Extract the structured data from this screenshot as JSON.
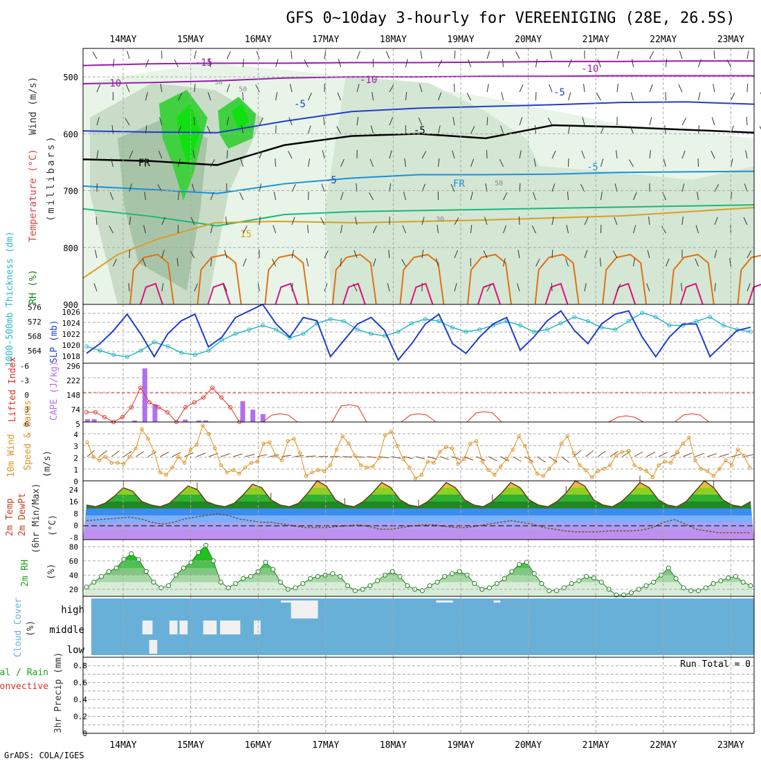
{
  "title": "GFS 0~10day 3-hourly for VEREENIGING (28E, 26.5S)",
  "footer": "GrADS: COLA/IGES",
  "days": [
    "14MAY",
    "15MAY",
    "16MAY",
    "17MAY",
    "18MAY",
    "19MAY",
    "20MAY",
    "21MAY",
    "22MAY",
    "23MAY"
  ],
  "colors": {
    "grid": "#a8a8a8",
    "purple": "#9a1ab0",
    "blue": "#1e3cd0",
    "cyan": "#1890d8",
    "green": "#18b878",
    "gold": "#d8a020",
    "orange": "#e07010",
    "magenta": "#e0107a",
    "slp": "#1e3cd0",
    "thick": "#28b8c0",
    "li": "#e03020",
    "cape": "#b070f0",
    "wind": "#e09020",
    "rh": "#20a020",
    "cloud": "#68b0d8"
  },
  "chart_data": [
    {
      "type": "contour",
      "name": "upper-air",
      "ylabel_parts": [
        "RH (%)",
        "Temperature (°C)",
        "Wind (m/s)",
        "(millibars)"
      ],
      "yticks": [
        500,
        600,
        700,
        800,
        900
      ],
      "ylim": [
        900,
        450
      ],
      "contour_labels": [
        "-15",
        "-10",
        "-10",
        "-10",
        "-5",
        "-5",
        "-5",
        "FR",
        "FR",
        "-5",
        "-5",
        "15",
        "30",
        "30",
        "50",
        "50"
      ],
      "isotherms": [
        {
          "label": "-15",
          "values": [
            480,
            477,
            476,
            476,
            475,
            475,
            474,
            473,
            473,
            472,
            472
          ]
        },
        {
          "label": "-10",
          "values": [
            512,
            510,
            507,
            502,
            500,
            500,
            499,
            499,
            498,
            498,
            498
          ]
        },
        {
          "label": "-5",
          "values": [
            595,
            597,
            598,
            578,
            561,
            555,
            552,
            549,
            545,
            544,
            548
          ]
        },
        {
          "label": "FR",
          "values": [
            645,
            648,
            655,
            620,
            604,
            600,
            608,
            585,
            588,
            593,
            598
          ]
        },
        {
          "label": "5",
          "values": [
            692,
            698,
            705,
            688,
            678,
            672,
            672,
            671,
            668,
            667,
            666
          ]
        },
        {
          "label": "10",
          "values": [
            732,
            745,
            762,
            742,
            737,
            735,
            733,
            731,
            729,
            727,
            725
          ]
        }
      ]
    },
    {
      "type": "line",
      "name": "slp-thickness",
      "ylabel_left": "1000-500mb Thickness (dm)",
      "ylabel_right": "SLP (mb)",
      "left_ticks": [
        "576",
        "572",
        "568",
        "564"
      ],
      "right_ticks": [
        "1026",
        "1024",
        "1022",
        "1020",
        "1018"
      ],
      "series": [
        {
          "name": "SLP",
          "values": [
            1019.5,
            1021,
            1023,
            1025.5,
            1022.5,
            1019,
            1022.5,
            1024.5,
            1025.5,
            1020.5,
            1022,
            1025,
            1026,
            1027,
            1024,
            1022,
            1025,
            1024.5,
            1019,
            1021.5,
            1024,
            1025,
            1023,
            1018.5,
            1021,
            1024,
            1025.5,
            1021,
            1019.5,
            1022,
            1024,
            1025,
            1020,
            1022,
            1024.5,
            1026,
            1023,
            1021,
            1024,
            1025.5,
            1026,
            1022,
            1019,
            1022,
            1024,
            1024,
            1019,
            1021,
            1023,
            1023.5
          ]
        },
        {
          "name": "Thickness",
          "values": [
            566,
            565,
            564,
            563.5,
            565,
            567,
            566,
            564.5,
            564,
            565,
            567.5,
            569,
            570,
            571,
            570,
            568,
            569,
            571.5,
            572.5,
            572,
            570,
            569,
            568.5,
            569.5,
            571.5,
            572.5,
            572,
            570.5,
            569.5,
            570,
            571,
            572,
            571,
            569.5,
            570,
            571.5,
            573,
            572,
            570.5,
            570,
            572,
            574,
            573,
            571,
            571,
            572,
            573,
            571,
            570,
            569.5
          ]
        }
      ]
    },
    {
      "type": "bar+line",
      "name": "instability",
      "ylabel_left": "Lifted Index",
      "ylabel_right": "CAPE (J/kg)",
      "left_ticks": [
        "-6",
        "-3",
        "0",
        "3",
        "6"
      ],
      "right_ticks": [
        "296",
        "222",
        "148",
        "74",
        "5"
      ],
      "cape_bars": [
        {
          "t": 0.05,
          "v": 14
        },
        {
          "t": 0.15,
          "v": 14
        },
        {
          "t": 0.75,
          "v": 8
        },
        {
          "t": 0.9,
          "v": 270
        },
        {
          "t": 1.05,
          "v": 90
        },
        {
          "t": 1.5,
          "v": 12
        },
        {
          "t": 1.7,
          "v": 8
        },
        {
          "t": 1.8,
          "v": 8
        },
        {
          "t": 2.35,
          "v": 105
        },
        {
          "t": 2.5,
          "v": 62
        },
        {
          "t": 2.65,
          "v": 40
        }
      ],
      "li_series": [
        4,
        4,
        5,
        6,
        5,
        3,
        -1,
        2,
        3,
        4,
        6,
        3,
        2,
        1,
        -1,
        1,
        3,
        6
      ]
    },
    {
      "type": "line",
      "name": "wind10m",
      "ylabel": "10m Wind Speed & Barbs (m/s)",
      "yticks": [
        "4",
        "3",
        "2",
        "1",
        "0"
      ],
      "values": [
        3.2,
        2,
        1.7,
        2,
        1.5,
        1.5,
        1.4,
        2,
        2.7,
        4.3,
        3.5,
        2.4,
        0.7,
        0.5,
        1.1,
        2,
        1.5,
        2.6,
        3,
        4.6,
        3.9,
        2.7,
        1.3,
        0.7,
        0.9,
        0.6,
        1.1,
        1.5,
        1.6,
        3.1,
        3.2,
        2.1,
        1.7,
        3.3,
        3.5,
        2.3,
        0.4,
        0.7,
        0.9,
        0.8,
        1.3,
        2.6,
        3.7,
        3.1,
        2.1,
        1.3,
        1.1,
        1.2,
        1.9,
        3.8,
        4.1,
        2.9,
        1.8,
        1.1,
        0.2,
        0.5,
        1.6,
        1.5,
        2.4,
        2.8,
        2.7,
        1.4,
        1.8,
        3.1,
        3.3,
        1.6,
        0.9,
        0.5,
        1.2,
        1.8,
        2.6,
        3.7,
        2.9,
        1.6,
        0.6,
        0.4,
        1,
        1.6,
        3.1,
        3.7,
        2.3,
        1.3,
        0.9,
        0.3,
        0.8,
        1,
        1.3,
        2.1,
        2.4,
        2.5,
        1.3,
        1,
        0.8,
        0.3,
        1.3,
        1.6,
        1.5,
        2.4,
        3.1,
        3.6,
        1.7,
        1,
        0.8,
        0.4,
        1,
        1.7,
        1.3,
        2.6,
        2.1,
        1.1
      ]
    },
    {
      "type": "area",
      "name": "temperature",
      "ylabel": "2m Temp 2m DewPt (6hr Min/Max) (°C)",
      "yticks": [
        "24",
        "16",
        "8",
        "0",
        "-8"
      ],
      "temp_series": [
        12,
        11,
        13,
        17,
        22,
        20,
        14,
        12,
        11,
        13,
        18,
        23,
        21,
        14,
        12,
        11,
        13,
        18,
        24,
        22,
        15,
        12,
        11,
        13,
        19,
        26,
        23,
        15,
        12,
        11,
        14,
        19,
        25,
        22,
        15,
        12,
        11,
        14,
        19,
        25,
        22,
        15,
        12,
        11,
        14,
        19,
        25,
        22,
        15,
        12,
        11,
        14,
        19,
        26,
        23,
        15,
        12,
        11,
        14,
        19,
        25,
        22,
        15,
        12,
        11,
        14,
        20,
        26,
        22,
        15,
        12,
        11,
        14
      ],
      "dew_series": [
        3,
        3.5,
        4,
        4.5,
        5,
        4,
        2,
        1,
        2,
        4,
        5,
        6,
        7,
        6,
        4,
        3,
        2,
        2,
        1,
        0,
        -1,
        -1,
        -1,
        -0.5,
        0,
        0.5,
        -0.5,
        -2,
        -2,
        -1,
        0,
        0.5,
        0.5,
        -0.5,
        -1,
        -1,
        0,
        1,
        2,
        3,
        2,
        1,
        -1,
        -2,
        -3,
        -3.5,
        -3.5,
        -3.5,
        -3,
        -3,
        -3,
        -2.5,
        -1,
        2,
        3.5,
        1,
        -2,
        -3,
        -4,
        -4,
        -4,
        -4
      ]
    },
    {
      "type": "area",
      "name": "rh2m",
      "ylabel": "2m RH (%)",
      "yticks": [
        "80",
        "60",
        "40",
        "20"
      ],
      "values": [
        23,
        30,
        38,
        45,
        50,
        62,
        70,
        62,
        45,
        30,
        22,
        25,
        40,
        50,
        58,
        72,
        82,
        60,
        30,
        22,
        28,
        35,
        38,
        45,
        58,
        48,
        30,
        20,
        22,
        28,
        35,
        38,
        40,
        42,
        38,
        25,
        18,
        20,
        25,
        32,
        40,
        45,
        38,
        25,
        20,
        18,
        25,
        30,
        38,
        42,
        45,
        40,
        28,
        20,
        22,
        28,
        35,
        45,
        55,
        58,
        42,
        28,
        18,
        18,
        22,
        28,
        32,
        38,
        36,
        30,
        20,
        12,
        12,
        15,
        20,
        25,
        30,
        40,
        50,
        35,
        22,
        18,
        18,
        22,
        28,
        32,
        36,
        38,
        30,
        25
      ]
    },
    {
      "type": "heatmap",
      "name": "cloud-cover",
      "ylabel": "Cloud Cover (%)",
      "levels": [
        "high",
        "middle",
        "low"
      ],
      "white_cells": [
        {
          "level": "middle",
          "t": 0.9,
          "w": 0.15
        },
        {
          "level": "middle",
          "t": 1.3,
          "w": 0.12
        },
        {
          "level": "middle",
          "t": 1.45,
          "w": 0.12
        },
        {
          "level": "middle",
          "t": 1.8,
          "w": 0.2
        },
        {
          "level": "middle",
          "t": 2.05,
          "w": 0.3
        },
        {
          "level": "middle",
          "t": 2.55,
          "w": 0.1
        },
        {
          "level": "low",
          "t": 1.0,
          "w": 0.12
        },
        {
          "level": "high",
          "t": 2.95,
          "w": 0.15
        },
        {
          "level": "high",
          "t": 3.1,
          "w": 0.4
        },
        {
          "level": "high",
          "t": 5.25,
          "w": 0.25
        },
        {
          "level": "high",
          "t": 6.1,
          "w": 0.1
        }
      ]
    },
    {
      "type": "bar",
      "name": "precip",
      "ylabel_parts": [
        "Total / Rain",
        "Convective",
        "3hr Precip (mm)"
      ],
      "yticks": [
        "0.8",
        "0.6",
        "0.4",
        "0.2",
        "0"
      ],
      "run_total": "Run Total = 0",
      "values": []
    }
  ]
}
